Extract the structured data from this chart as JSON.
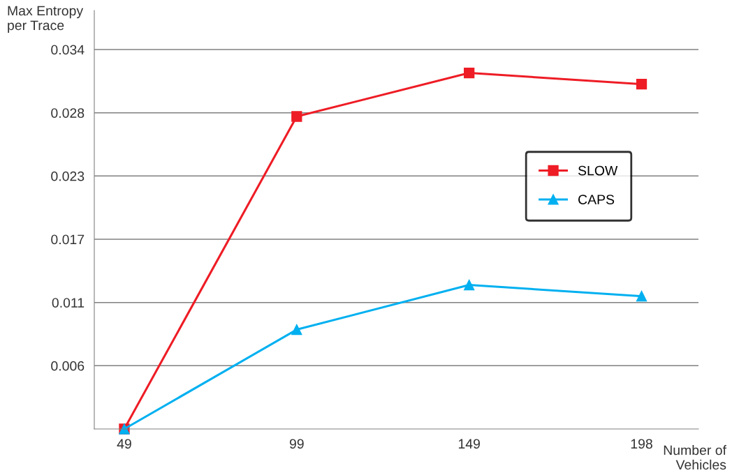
{
  "chart_data": {
    "type": "line",
    "xlabel": "Number of\nVehicles",
    "ylabel": "Max Entropy\nper Trace",
    "categories": [
      "49",
      "99",
      "149",
      "198"
    ],
    "series": [
      {
        "name": "SLOW",
        "color": "#ee1c25",
        "marker": "square",
        "values": [
          0,
          0.028,
          0.0319,
          0.0309
        ]
      },
      {
        "name": "CAPS",
        "color": "#00b0f0",
        "marker": "triangle",
        "values": [
          0,
          0.0089,
          0.0129,
          0.0119
        ]
      }
    ],
    "ylim": [
      0,
      0.0375
    ],
    "yticks": [
      {
        "value": 0.00567,
        "label": "0.006"
      },
      {
        "value": 0.01133,
        "label": "0.011"
      },
      {
        "value": 0.017,
        "label": "0.017"
      },
      {
        "value": 0.02267,
        "label": "0.023"
      },
      {
        "value": 0.02833,
        "label": "0.028"
      },
      {
        "value": 0.034,
        "label": "0.034"
      }
    ],
    "grid": "y",
    "legend": "right",
    "line_style": "solid"
  }
}
